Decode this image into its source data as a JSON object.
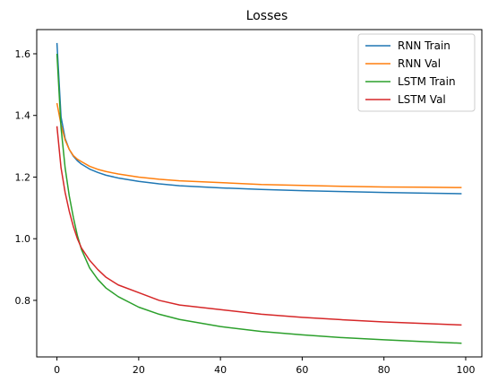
{
  "chart_data": {
    "type": "line",
    "title": "Losses",
    "xlabel": "",
    "ylabel": "",
    "xlim": [
      -4.95,
      103.95
    ],
    "ylim": [
      0.6165,
      1.6785
    ],
    "xticks": [
      0,
      20,
      40,
      60,
      80,
      100
    ],
    "xtick_labels": [
      "0",
      "20",
      "40",
      "60",
      "80",
      "100"
    ],
    "yticks": [
      0.8,
      1.0,
      1.2,
      1.4,
      1.6
    ],
    "ytick_labels": [
      "0.8",
      "1.0",
      "1.2",
      "1.4",
      "1.6"
    ],
    "grid": false,
    "legend_position": "top-right",
    "x": [
      0,
      1,
      2,
      3,
      4,
      5,
      6,
      8,
      10,
      12,
      15,
      20,
      25,
      30,
      40,
      50,
      60,
      70,
      80,
      90,
      99
    ],
    "series": [
      {
        "name": "RNN Train",
        "color": "#1f77b4",
        "values": [
          1.635,
          1.395,
          1.325,
          1.29,
          1.268,
          1.253,
          1.242,
          1.226,
          1.215,
          1.206,
          1.197,
          1.186,
          1.178,
          1.172,
          1.165,
          1.16,
          1.156,
          1.153,
          1.15,
          1.148,
          1.146
        ]
      },
      {
        "name": "RNN Val",
        "color": "#ff7f0e",
        "values": [
          1.44,
          1.37,
          1.32,
          1.29,
          1.27,
          1.258,
          1.25,
          1.235,
          1.225,
          1.218,
          1.21,
          1.2,
          1.193,
          1.188,
          1.182,
          1.176,
          1.173,
          1.17,
          1.168,
          1.167,
          1.166
        ]
      },
      {
        "name": "LSTM Train",
        "color": "#2ca02c",
        "values": [
          1.6,
          1.36,
          1.23,
          1.14,
          1.07,
          1.01,
          0.965,
          0.905,
          0.868,
          0.84,
          0.812,
          0.778,
          0.755,
          0.738,
          0.715,
          0.699,
          0.688,
          0.679,
          0.672,
          0.666,
          0.661
        ]
      },
      {
        "name": "LSTM Val",
        "color": "#d62728",
        "values": [
          1.365,
          1.23,
          1.15,
          1.09,
          1.04,
          1.0,
          0.97,
          0.93,
          0.9,
          0.875,
          0.85,
          0.825,
          0.8,
          0.785,
          0.77,
          0.755,
          0.745,
          0.737,
          0.73,
          0.725,
          0.72
        ]
      }
    ]
  }
}
